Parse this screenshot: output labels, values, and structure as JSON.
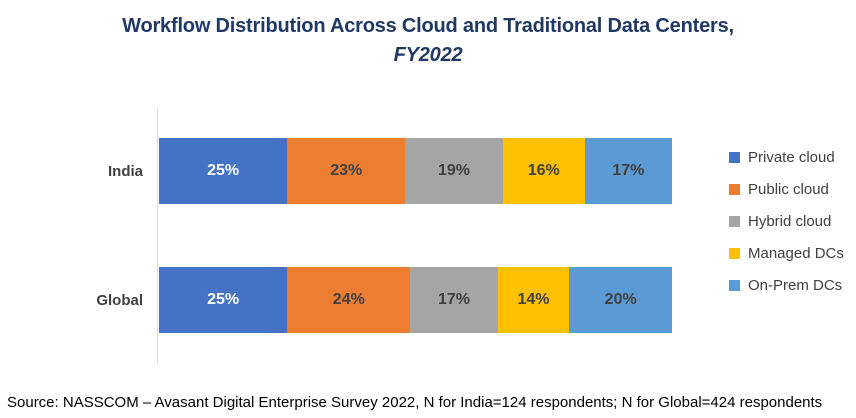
{
  "title": {
    "line1": "Workflow Distribution Across Cloud and Traditional Data Centers,",
    "line2": "FY2022"
  },
  "source": "Source: NASSCOM – Avasant Digital Enterprise Survey 2022, N for India=124 respondents; N for Global=424 respondents",
  "colors": {
    "title": "#1F3864",
    "category_label": "#404040",
    "legend_label": "#404040",
    "axis_line": "#D9D9D9",
    "data_label_light": "#FFFFFF",
    "data_label_dark": "#404040",
    "background": "#FFFFFF",
    "source_text": "#000000"
  },
  "chart_data": {
    "type": "bar",
    "orientation": "horizontal",
    "stacked": true,
    "title": "Workflow Distribution Across Cloud and Traditional Data Centers, FY2022",
    "categories": [
      "India",
      "Global"
    ],
    "series": [
      {
        "name": "Private cloud",
        "color": "#4472C4",
        "label_color": "#FFFFFF",
        "values": [
          25,
          25
        ]
      },
      {
        "name": "Public cloud",
        "color": "#ED7D31",
        "label_color": "#404040",
        "values": [
          23,
          24
        ]
      },
      {
        "name": "Hybrid cloud",
        "color": "#A5A5A5",
        "label_color": "#404040",
        "values": [
          19,
          17
        ]
      },
      {
        "name": "Managed DCs",
        "color": "#FFC000",
        "label_color": "#404040",
        "values": [
          16,
          14
        ]
      },
      {
        "name": "On-Prem DCs",
        "color": "#5B9BD5",
        "label_color": "#404040",
        "values": [
          17,
          20
        ]
      }
    ],
    "value_suffix": "%",
    "xlim": [
      0,
      100
    ],
    "grid": false,
    "data_labels": true,
    "legend_position": "right"
  }
}
